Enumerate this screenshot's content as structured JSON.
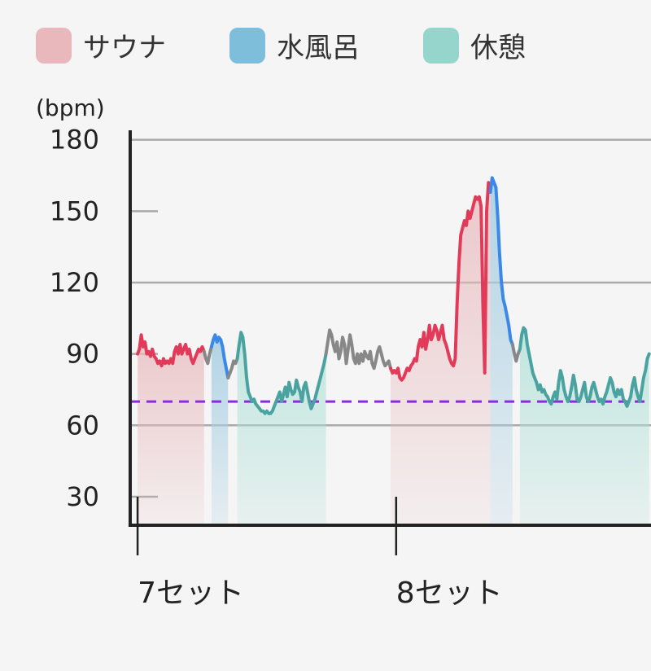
{
  "chart_data": {
    "type": "area",
    "unit_label": "(bpm)",
    "legend": [
      {
        "name": "サウナ",
        "color": "#e8b8bc"
      },
      {
        "name": "水風呂",
        "color": "#7ebedb"
      },
      {
        "name": "休憩",
        "color": "#95d5cb"
      }
    ],
    "y_ticks": [
      "180",
      "150",
      "120",
      "90",
      "60",
      "30"
    ],
    "y_tick_values": [
      180,
      150,
      120,
      90,
      60,
      30
    ],
    "ylim": [
      18,
      184
    ],
    "reference_line": 70,
    "categories": [
      "7セット",
      "8セット"
    ],
    "category_x": [
      0,
      140
    ],
    "xlim": [
      -4,
      278
    ],
    "line_colors": {
      "sauna": "#e23b5a",
      "cold_bath": "#3b88e8",
      "rest": "#4aa3a0",
      "transition": "#888888",
      "reference": "#8a2be2"
    },
    "segments": [
      {
        "phase": "sauna",
        "points": [
          [
            0,
            90
          ],
          [
            1,
            92
          ],
          [
            2,
            98
          ],
          [
            3,
            93
          ],
          [
            4,
            95
          ],
          [
            5,
            90
          ],
          [
            6,
            91
          ],
          [
            7,
            89
          ],
          [
            8,
            92
          ],
          [
            9,
            89
          ],
          [
            10,
            88
          ],
          [
            11,
            86
          ],
          [
            12,
            87
          ],
          [
            13,
            85
          ],
          [
            14,
            88
          ],
          [
            15,
            86
          ],
          [
            16,
            87
          ],
          [
            17,
            86
          ],
          [
            18,
            88
          ],
          [
            19,
            86
          ],
          [
            20,
            91
          ],
          [
            21,
            93
          ],
          [
            22,
            90
          ],
          [
            23,
            94
          ],
          [
            24,
            90
          ],
          [
            25,
            92
          ],
          [
            26,
            94
          ],
          [
            27,
            90
          ],
          [
            28,
            92
          ],
          [
            29,
            88
          ],
          [
            30,
            86
          ],
          [
            31,
            88
          ],
          [
            32,
            90
          ],
          [
            33,
            92
          ],
          [
            34,
            91
          ],
          [
            35,
            93
          ],
          [
            36,
            91
          ]
        ]
      },
      {
        "phase": "transition",
        "points": [
          [
            36,
            91
          ],
          [
            37,
            88
          ],
          [
            38,
            86
          ],
          [
            39,
            90
          ],
          [
            40,
            93
          ]
        ]
      },
      {
        "phase": "cold_bath",
        "points": [
          [
            40,
            93
          ],
          [
            41,
            96
          ],
          [
            42,
            98
          ],
          [
            43,
            95
          ],
          [
            44,
            97
          ],
          [
            45,
            96
          ],
          [
            46,
            93
          ],
          [
            47,
            88
          ],
          [
            48,
            84
          ],
          [
            49,
            80
          ]
        ]
      },
      {
        "phase": "transition",
        "points": [
          [
            49,
            80
          ],
          [
            50,
            82
          ],
          [
            51,
            84
          ],
          [
            52,
            87
          ],
          [
            53,
            86
          ],
          [
            54,
            88
          ]
        ]
      },
      {
        "phase": "rest",
        "points": [
          [
            54,
            88
          ],
          [
            55,
            94
          ],
          [
            56,
            99
          ],
          [
            57,
            97
          ],
          [
            58,
            90
          ],
          [
            59,
            80
          ],
          [
            60,
            74
          ],
          [
            61,
            72
          ],
          [
            62,
            70
          ],
          [
            63,
            71
          ],
          [
            64,
            69
          ],
          [
            65,
            68
          ],
          [
            66,
            67
          ],
          [
            67,
            66
          ],
          [
            68,
            66
          ],
          [
            69,
            65
          ],
          [
            70,
            66
          ],
          [
            71,
            65
          ],
          [
            72,
            65
          ],
          [
            73,
            66
          ],
          [
            74,
            68
          ],
          [
            75,
            70
          ],
          [
            76,
            72
          ],
          [
            77,
            74
          ],
          [
            78,
            70
          ],
          [
            79,
            73
          ],
          [
            80,
            76
          ],
          [
            81,
            72
          ],
          [
            82,
            78
          ],
          [
            83,
            75
          ],
          [
            84,
            73
          ],
          [
            85,
            74
          ],
          [
            86,
            79
          ],
          [
            87,
            76
          ],
          [
            88,
            74
          ],
          [
            89,
            70
          ],
          [
            90,
            76
          ],
          [
            91,
            78
          ],
          [
            92,
            74
          ],
          [
            93,
            70
          ],
          [
            94,
            67
          ],
          [
            95,
            69
          ],
          [
            96,
            71
          ],
          [
            97,
            74
          ],
          [
            98,
            77
          ],
          [
            99,
            80
          ],
          [
            100,
            83
          ],
          [
            101,
            86
          ],
          [
            102,
            90
          ]
        ]
      },
      {
        "phase": "transition",
        "points": [
          [
            102,
            90
          ],
          [
            103,
            95
          ],
          [
            104,
            100
          ],
          [
            105,
            98
          ],
          [
            106,
            94
          ],
          [
            107,
            91
          ],
          [
            108,
            95
          ],
          [
            109,
            88
          ],
          [
            110,
            91
          ],
          [
            111,
            97
          ],
          [
            112,
            94
          ],
          [
            113,
            86
          ],
          [
            114,
            92
          ],
          [
            115,
            98
          ],
          [
            116,
            94
          ],
          [
            117,
            88
          ],
          [
            118,
            86
          ],
          [
            119,
            90
          ],
          [
            120,
            86
          ],
          [
            121,
            90
          ],
          [
            122,
            87
          ],
          [
            123,
            91
          ],
          [
            124,
            89
          ],
          [
            125,
            88
          ],
          [
            126,
            91
          ],
          [
            127,
            86
          ],
          [
            128,
            84
          ],
          [
            129,
            87
          ],
          [
            130,
            91
          ],
          [
            131,
            93
          ],
          [
            132,
            90
          ],
          [
            133,
            87
          ],
          [
            134,
            85
          ],
          [
            135,
            86
          ],
          [
            136,
            87
          ],
          [
            137,
            84
          ]
        ]
      },
      {
        "phase": "sauna",
        "points": [
          [
            137,
            84
          ],
          [
            138,
            82
          ],
          [
            139,
            83
          ],
          [
            140,
            82
          ],
          [
            141,
            84
          ],
          [
            142,
            80
          ],
          [
            143,
            79
          ],
          [
            144,
            80
          ],
          [
            145,
            82
          ],
          [
            146,
            84
          ],
          [
            147,
            83
          ],
          [
            148,
            85
          ],
          [
            149,
            86
          ],
          [
            150,
            88
          ],
          [
            151,
            87
          ],
          [
            152,
            93
          ],
          [
            153,
            96
          ],
          [
            154,
            93
          ],
          [
            155,
            99
          ],
          [
            156,
            92
          ],
          [
            157,
            96
          ],
          [
            158,
            102
          ],
          [
            159,
            96
          ],
          [
            160,
            98
          ],
          [
            161,
            102
          ],
          [
            162,
            100
          ],
          [
            163,
            96
          ],
          [
            164,
            99
          ],
          [
            165,
            102
          ],
          [
            166,
            96
          ],
          [
            167,
            94
          ],
          [
            168,
            91
          ],
          [
            169,
            88
          ],
          [
            170,
            86
          ],
          [
            171,
            85
          ],
          [
            172,
            88
          ],
          [
            173,
            111
          ],
          [
            174,
            128
          ],
          [
            175,
            140
          ],
          [
            176,
            143
          ],
          [
            177,
            146
          ],
          [
            178,
            144
          ],
          [
            179,
            150
          ],
          [
            180,
            147
          ],
          [
            181,
            150
          ],
          [
            182,
            153
          ],
          [
            183,
            156
          ],
          [
            184,
            155
          ],
          [
            185,
            156
          ],
          [
            186,
            152
          ],
          [
            187,
            110
          ],
          [
            188,
            82
          ],
          [
            189,
            150
          ],
          [
            190,
            162
          ],
          [
            191,
            158
          ]
        ]
      },
      {
        "phase": "cold_bath",
        "points": [
          [
            191,
            158
          ],
          [
            192,
            164
          ],
          [
            193,
            162
          ],
          [
            194,
            160
          ],
          [
            195,
            148
          ],
          [
            196,
            132
          ],
          [
            197,
            120
          ],
          [
            198,
            113
          ],
          [
            199,
            110
          ],
          [
            200,
            106
          ],
          [
            201,
            102
          ],
          [
            202,
            96
          ],
          [
            203,
            94
          ]
        ]
      },
      {
        "phase": "transition",
        "points": [
          [
            203,
            94
          ],
          [
            204,
            90
          ],
          [
            205,
            87
          ],
          [
            206,
            90
          ],
          [
            207,
            92
          ]
        ]
      },
      {
        "phase": "rest",
        "points": [
          [
            207,
            92
          ],
          [
            208,
            98
          ],
          [
            209,
            101
          ],
          [
            210,
            100
          ],
          [
            211,
            94
          ],
          [
            212,
            90
          ],
          [
            213,
            86
          ],
          [
            214,
            82
          ],
          [
            215,
            80
          ],
          [
            216,
            78
          ],
          [
            217,
            75
          ],
          [
            218,
            77
          ],
          [
            219,
            74
          ],
          [
            220,
            75
          ],
          [
            221,
            73
          ],
          [
            222,
            72
          ],
          [
            223,
            70
          ],
          [
            224,
            69
          ],
          [
            225,
            72
          ],
          [
            226,
            74
          ],
          [
            227,
            71
          ],
          [
            228,
            78
          ],
          [
            229,
            83
          ],
          [
            230,
            80
          ],
          [
            231,
            75
          ],
          [
            232,
            72
          ],
          [
            233,
            70
          ],
          [
            234,
            72
          ],
          [
            235,
            76
          ],
          [
            236,
            81
          ],
          [
            237,
            77
          ],
          [
            238,
            71
          ],
          [
            239,
            70
          ],
          [
            240,
            72
          ],
          [
            241,
            75
          ],
          [
            242,
            78
          ],
          [
            243,
            72
          ],
          [
            244,
            70
          ],
          [
            245,
            72
          ],
          [
            246,
            76
          ],
          [
            247,
            78
          ],
          [
            248,
            75
          ],
          [
            249,
            72
          ],
          [
            250,
            70
          ],
          [
            251,
            71
          ],
          [
            252,
            69
          ],
          [
            253,
            72
          ],
          [
            254,
            74
          ],
          [
            255,
            77
          ],
          [
            256,
            80
          ],
          [
            257,
            78
          ],
          [
            258,
            74
          ],
          [
            259,
            72
          ],
          [
            260,
            75
          ],
          [
            261,
            73
          ],
          [
            262,
            75
          ],
          [
            263,
            71
          ],
          [
            264,
            70
          ],
          [
            265,
            68
          ],
          [
            266,
            70
          ],
          [
            267,
            72
          ],
          [
            268,
            77
          ],
          [
            269,
            80
          ],
          [
            270,
            75
          ],
          [
            271,
            72
          ],
          [
            272,
            70
          ],
          [
            273,
            75
          ],
          [
            274,
            80
          ],
          [
            275,
            83
          ],
          [
            276,
            88
          ],
          [
            277,
            90
          ]
        ]
      }
    ]
  }
}
